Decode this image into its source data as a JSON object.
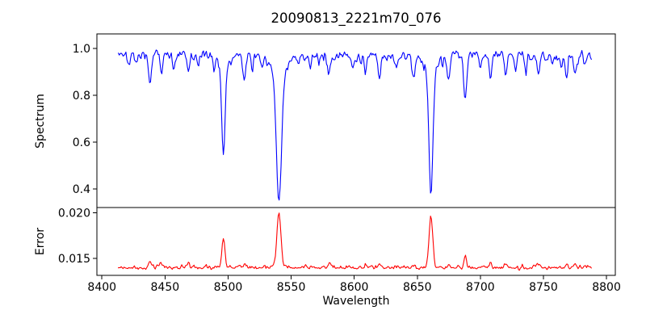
{
  "figure": {
    "title": "20090813_2221m70_076",
    "xlabel": "Wavelength",
    "ylabel_top": "Spectrum",
    "ylabel_bottom": "Error",
    "background_color": "#ffffff",
    "axis_color": "#000000"
  },
  "chart_data": {
    "type": "line",
    "title": "20090813_2221m70_076",
    "xlabel": "Wavelength",
    "xlim": [
      8396,
      8807
    ],
    "x_ticks": [
      8400,
      8450,
      8500,
      8550,
      8600,
      8650,
      8700,
      8750,
      8800
    ],
    "x_tick_labels": [
      "8400",
      "8450",
      "8500",
      "8550",
      "8600",
      "8650",
      "8700",
      "8750",
      "8800"
    ],
    "grid": false,
    "legend": null,
    "panels": [
      {
        "name": "spectrum",
        "ylabel": "Spectrum",
        "ylim": [
          0.32,
          1.062
        ],
        "y_ticks": [
          0.4,
          0.6,
          0.8,
          1.0
        ],
        "y_tick_labels": [
          "0.4",
          "0.6",
          "0.8",
          "1.0"
        ],
        "color": "#0000ff",
        "description": "Normalized stellar spectrum of the Ca II triplet region; flat continuum ~0.97 with pixel noise; deep Ca II absorption lines plus many weak metal lines",
        "key_values": {
          "continuum_level": 0.97,
          "strong_line_minima": [
            [
              8496,
              0.53
            ],
            [
              8540,
              0.345
            ],
            [
              8661,
              0.38
            ],
            [
              8688,
              0.78
            ]
          ]
        },
        "synthesis": {
          "x_start": 8413,
          "x_end": 8788,
          "step": 0.75,
          "seed": 20090813,
          "continuum": 0.972,
          "continuum_wiggle": 0.004,
          "noise_sigma": 0.0115,
          "lines": [
            [
              8421.5,
              0.055,
              0.9
            ],
            [
              8427,
              0.04,
              0.8
            ],
            [
              8438,
              0.135,
              1.1
            ],
            [
              8447,
              0.085,
              0.9
            ],
            [
              8457,
              0.05,
              0.8
            ],
            [
              8468.5,
              0.08,
              1.0
            ],
            [
              8476,
              0.05,
              0.8
            ],
            [
              8489,
              0.065,
              0.9
            ],
            [
              8496.3,
              0.38,
              1.3
            ],
            [
              8496.3,
              0.06,
              3.5
            ],
            [
              8513,
              0.115,
              1.1
            ],
            [
              8519,
              0.06,
              0.8
            ],
            [
              8527,
              0.05,
              0.8
            ],
            [
              8540.3,
              0.54,
              2.0
            ],
            [
              8540.3,
              0.085,
              5.5
            ],
            [
              8556,
              0.05,
              0.8
            ],
            [
              8565,
              0.045,
              0.8
            ],
            [
              8572,
              0.04,
              0.8
            ],
            [
              8580,
              0.075,
              1.0
            ],
            [
              8599,
              0.06,
              0.9
            ],
            [
              8609,
              0.07,
              0.9
            ],
            [
              8620,
              0.08,
              1.0
            ],
            [
              8634,
              0.05,
              0.8
            ],
            [
              8647,
              0.09,
              1.0
            ],
            [
              8660.8,
              0.51,
              1.55
            ],
            [
              8660.8,
              0.08,
              4.5
            ],
            [
              8675,
              0.105,
              1.0
            ],
            [
              8688,
              0.19,
              1.2
            ],
            [
              8700,
              0.06,
              0.9
            ],
            [
              8708,
              0.105,
              1.0
            ],
            [
              8720,
              0.085,
              0.9
            ],
            [
              8728,
              0.075,
              0.9
            ],
            [
              8736,
              0.06,
              0.8
            ],
            [
              8746,
              0.08,
              1.0
            ],
            [
              8757,
              0.055,
              0.8
            ],
            [
              8764,
              0.06,
              0.8
            ],
            [
              8768.5,
              0.09,
              0.9
            ],
            [
              8775,
              0.095,
              1.0
            ],
            [
              8783,
              0.05,
              0.8
            ]
          ]
        }
      },
      {
        "name": "error",
        "ylabel": "Error",
        "ylim": [
          0.01316,
          0.02055
        ],
        "y_ticks": [
          0.015,
          0.02
        ],
        "y_tick_labels": [
          "0.015",
          "0.020"
        ],
        "color": "#ff0000",
        "description": "Flux error spectrum; flat baseline ~0.014 with narrow peaks at the strong absorption lines",
        "key_values": {
          "baseline_level": 0.014,
          "peak_maxima": [
            [
              8496,
              0.0173
            ],
            [
              8540,
              0.02
            ],
            [
              8661,
              0.0196
            ],
            [
              8688,
              0.0153
            ]
          ]
        },
        "synthesis": {
          "x_start": 8413,
          "x_end": 8788,
          "step": 0.75,
          "seed": 76,
          "baseline": 0.014,
          "noise_sigma": 0.00012,
          "peaks": [
            [
              8438,
              0.0007,
              1.1
            ],
            [
              8447,
              0.0004,
              0.9
            ],
            [
              8468.5,
              0.0004,
              0.9
            ],
            [
              8496.3,
              0.0033,
              1.2
            ],
            [
              8513,
              0.0005,
              0.9
            ],
            [
              8540.3,
              0.006,
              1.6
            ],
            [
              8580,
              0.0003,
              0.9
            ],
            [
              8620,
              0.0003,
              0.9
            ],
            [
              8647,
              0.0003,
              0.9
            ],
            [
              8660.8,
              0.0056,
              1.5
            ],
            [
              8675,
              0.0004,
              0.9
            ],
            [
              8688,
              0.0013,
              1.0
            ],
            [
              8708,
              0.0005,
              0.9
            ],
            [
              8720,
              0.0004,
              0.9
            ],
            [
              8746,
              0.0003,
              0.9
            ],
            [
              8768.5,
              0.0005,
              0.9
            ],
            [
              8775,
              0.0005,
              0.9
            ]
          ]
        }
      }
    ]
  }
}
